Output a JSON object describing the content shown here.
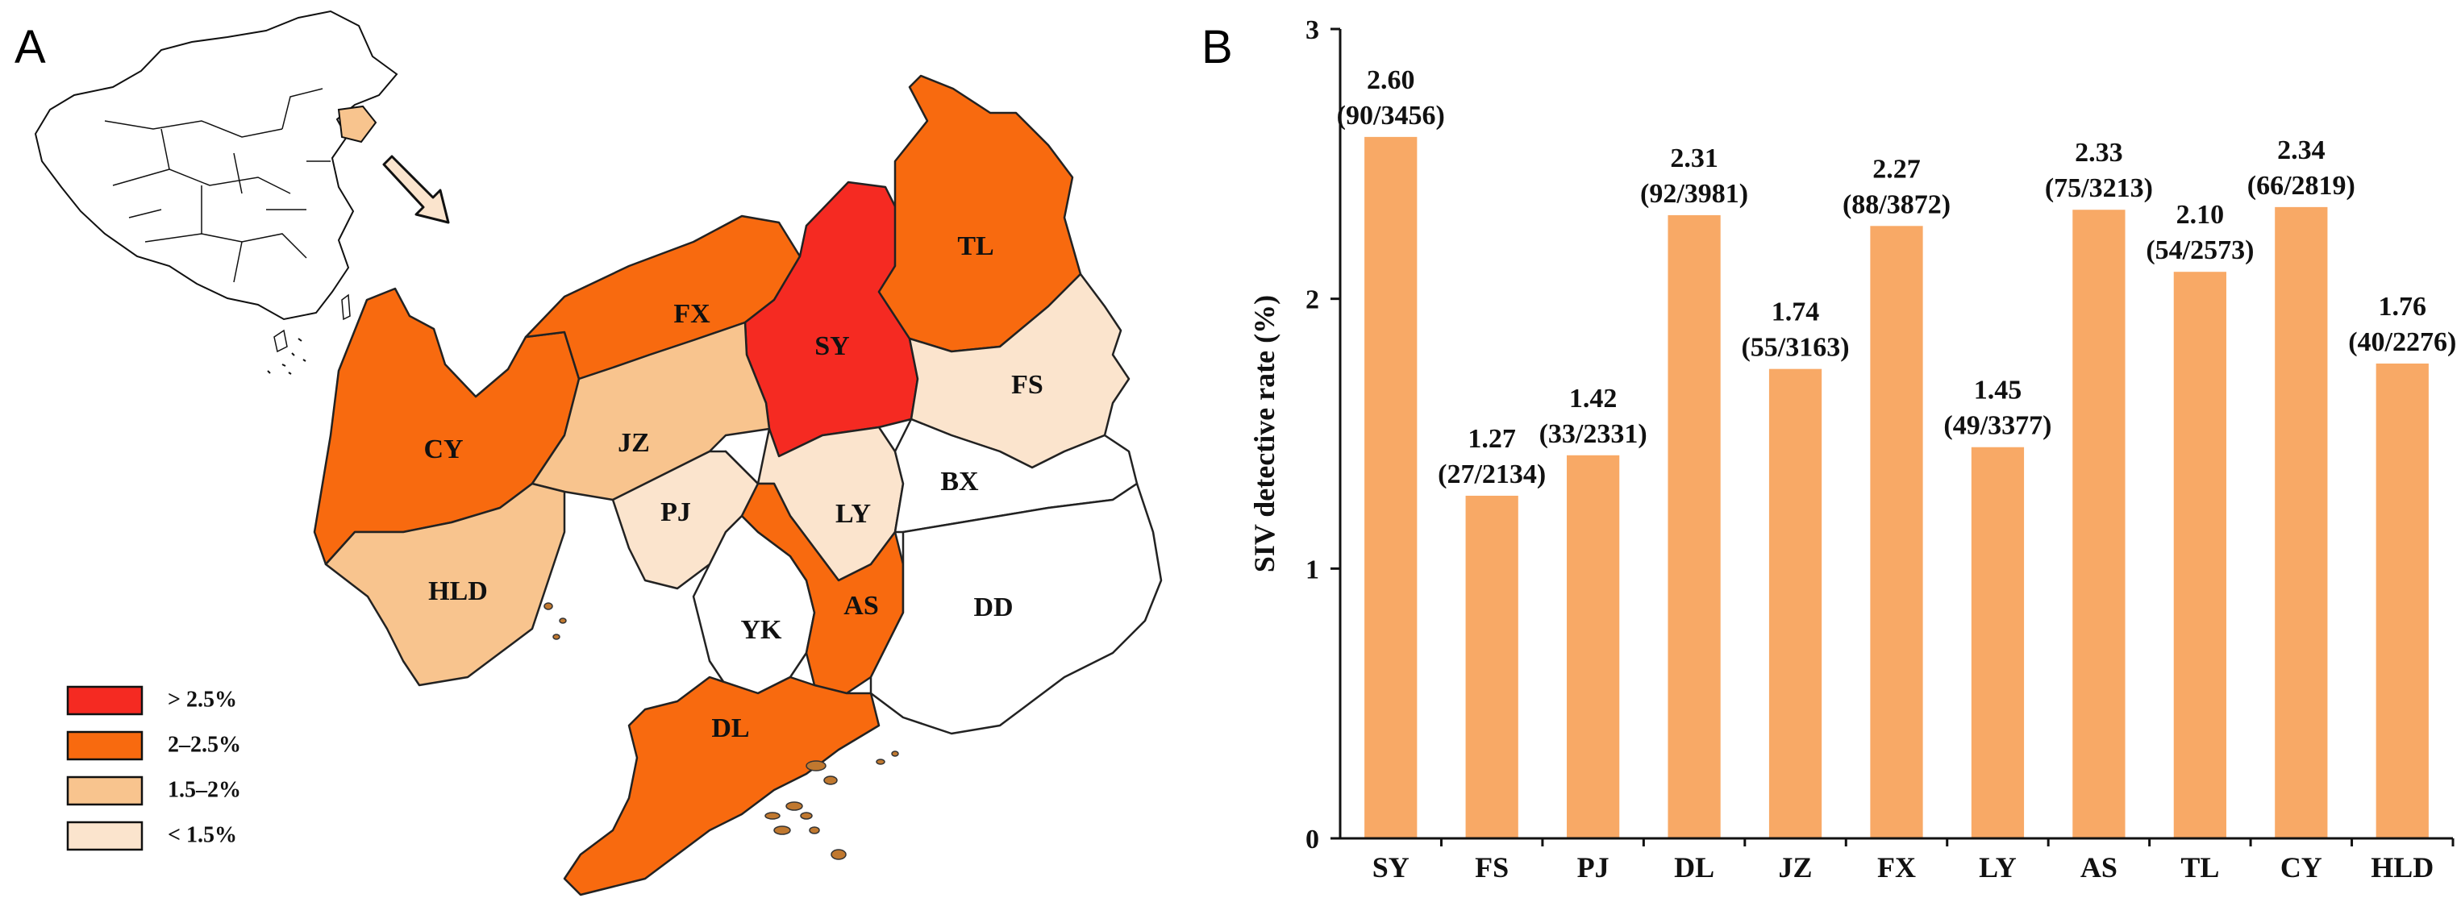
{
  "panels": {
    "a": "A",
    "b": "B"
  },
  "colors": {
    "gt25": "#f52a22",
    "r2_25": "#f86a0f",
    "r15_2": "#f8c48e",
    "lt15": "#fbe4cd",
    "none": "#ffffff",
    "bar": "#f8a966",
    "china_highlight": "#f8c48e"
  },
  "map": {
    "regions": [
      {
        "code": "SY",
        "cat": "gt25"
      },
      {
        "code": "TL",
        "cat": "r2_25"
      },
      {
        "code": "FX",
        "cat": "r2_25"
      },
      {
        "code": "CY",
        "cat": "r2_25"
      },
      {
        "code": "AS",
        "cat": "r2_25"
      },
      {
        "code": "DL",
        "cat": "r2_25"
      },
      {
        "code": "JZ",
        "cat": "r15_2"
      },
      {
        "code": "HLD",
        "cat": "r15_2"
      },
      {
        "code": "FS",
        "cat": "lt15"
      },
      {
        "code": "LY",
        "cat": "lt15"
      },
      {
        "code": "PJ",
        "cat": "lt15"
      },
      {
        "code": "BX",
        "cat": "none"
      },
      {
        "code": "YK",
        "cat": "none"
      },
      {
        "code": "DD",
        "cat": "none"
      }
    ],
    "legend": [
      {
        "key": "gt25",
        "label": "> 2.5%"
      },
      {
        "key": "r2_25",
        "label": "2–2.5%"
      },
      {
        "key": "r15_2",
        "label": "1.5–2%"
      },
      {
        "key": "lt15",
        "label": "< 1.5%"
      }
    ],
    "arrow": "arrow-icon"
  },
  "chart_data": {
    "type": "bar",
    "title": "",
    "xlabel": "",
    "ylabel": "SIV detective rate (%)",
    "ylim": [
      0,
      3
    ],
    "yticks": [
      "0",
      "1",
      "2",
      "3"
    ],
    "grid": false,
    "categories": [
      "SY",
      "FS",
      "PJ",
      "DL",
      "JZ",
      "FX",
      "LY",
      "AS",
      "TL",
      "CY",
      "HLD"
    ],
    "values": [
      2.6,
      1.27,
      1.42,
      2.31,
      1.74,
      2.27,
      1.45,
      2.33,
      2.1,
      2.34,
      1.76
    ],
    "value_labels": [
      "2.60",
      "1.27",
      "1.42",
      "2.31",
      "1.74",
      "2.27",
      "1.45",
      "2.33",
      "2.10",
      "2.34",
      "1.76"
    ],
    "count_labels": [
      "(90/3456)",
      "(27/2134)",
      "(33/2331)",
      "(92/3981)",
      "(55/3163)",
      "(88/3872)",
      "(49/3377)",
      "(75/3213)",
      "(54/2573)",
      "(66/2819)",
      "(40/2276)"
    ]
  }
}
